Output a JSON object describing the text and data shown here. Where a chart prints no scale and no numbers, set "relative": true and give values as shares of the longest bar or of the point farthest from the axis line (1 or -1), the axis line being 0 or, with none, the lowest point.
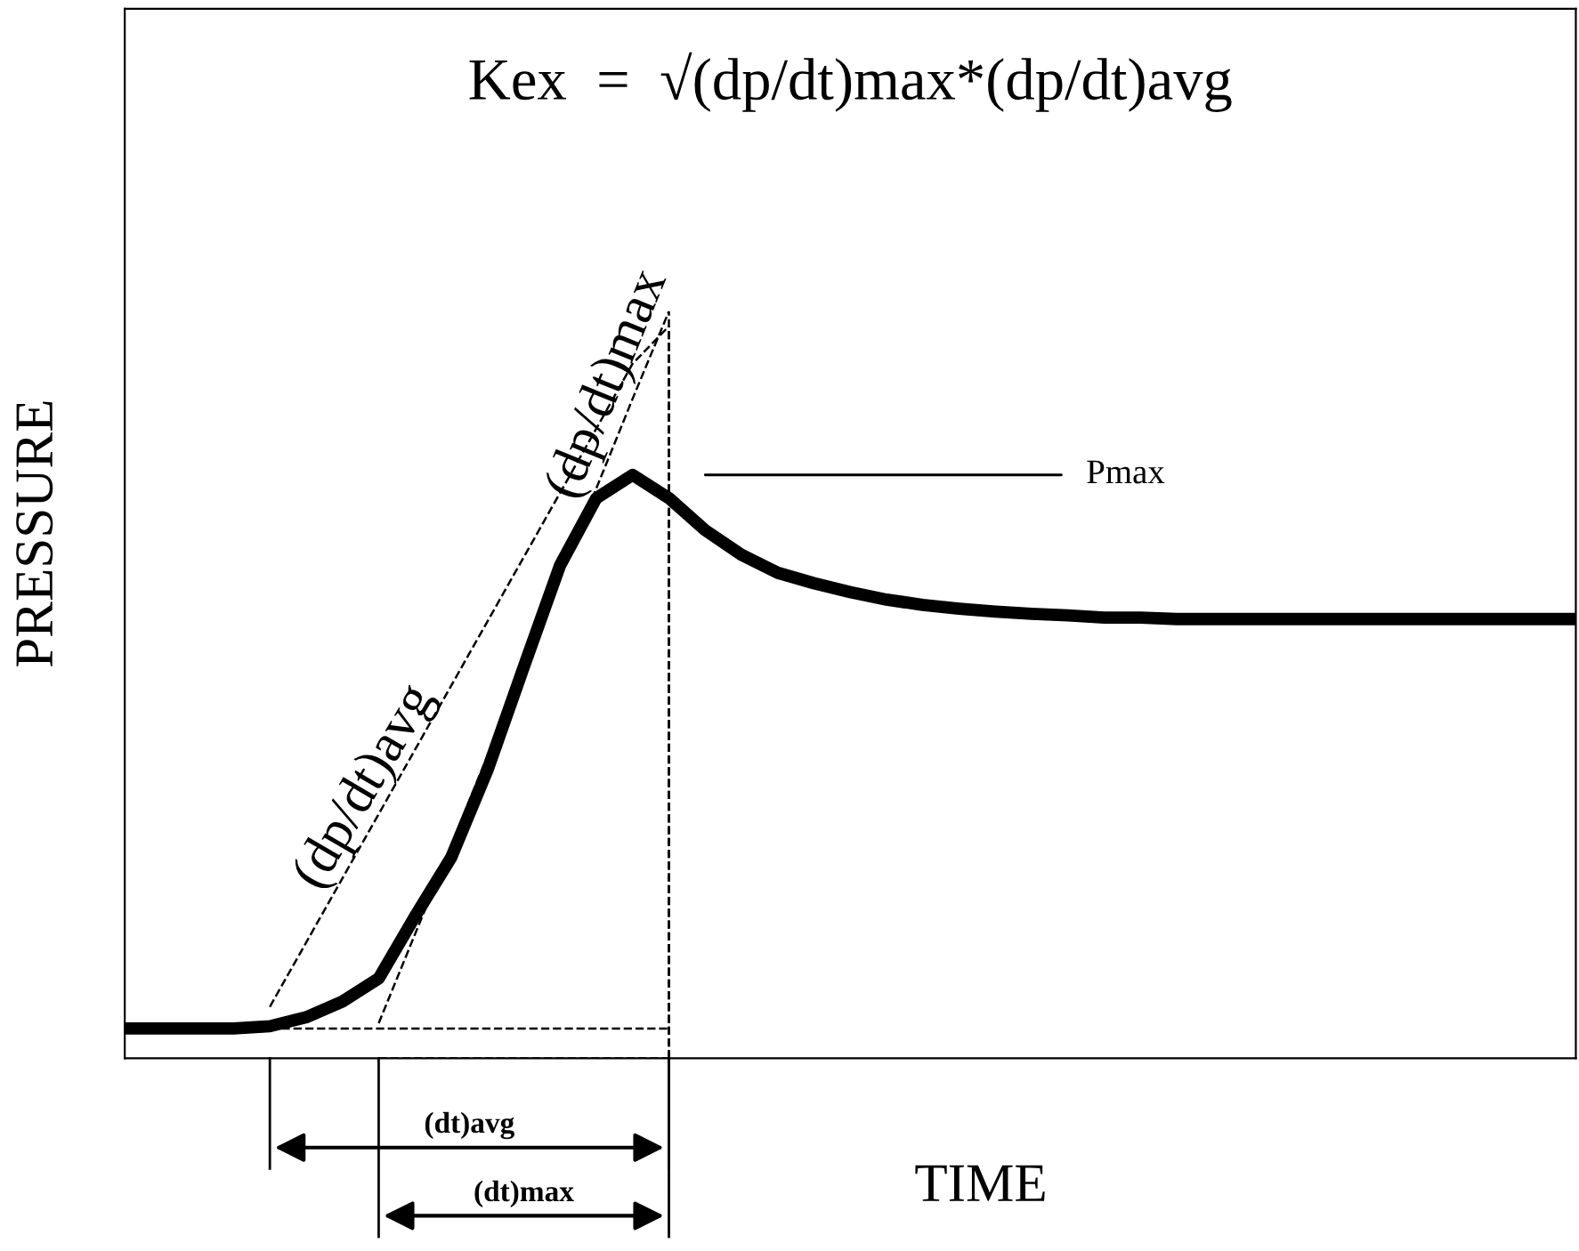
{
  "chart_data": {
    "type": "line",
    "relative": true,
    "xlabel": "TIME",
    "ylabel": "PRESSURE",
    "tick_labels": false,
    "legend": false,
    "categories": [
      null,
      null,
      null,
      null,
      null,
      null,
      null,
      null,
      null,
      null,
      null,
      null,
      null,
      null,
      null,
      null,
      null,
      null,
      null,
      null,
      null,
      null,
      null,
      null,
      null,
      null,
      null,
      null,
      null,
      null,
      null,
      null,
      null,
      null,
      null,
      null,
      null,
      null,
      null,
      null,
      null
    ],
    "series": [
      {
        "color": "#000000",
        "line_style": "solid",
        "values": [
          0.04,
          0.04,
          0.04,
          0.04,
          0.043,
          0.055,
          0.076,
          0.107,
          0.19,
          0.269,
          0.386,
          0.524,
          0.66,
          0.75,
          0.781,
          0.75,
          0.707,
          0.674,
          0.65,
          0.636,
          0.624,
          0.614,
          0.607,
          0.602,
          0.598,
          0.595,
          0.593,
          0.59,
          0.59,
          0.588,
          0.588,
          0.588,
          0.588,
          0.588,
          0.588,
          0.588,
          0.588,
          0.588,
          0.588,
          0.588,
          0.588
        ]
      },
      {
        "name": "(dp/dt)avg",
        "color": "#000000",
        "line_style": "dashed",
        "values": [
          null,
          null,
          null,
          null,
          0.069,
          0.155,
          0.241,
          0.327,
          0.413,
          0.499,
          0.585,
          0.671,
          0.757,
          0.843,
          0.93,
          0.98,
          null,
          null,
          null,
          null,
          null,
          null,
          null,
          null,
          null,
          null,
          null,
          null,
          null,
          null,
          null,
          null,
          null,
          null,
          null,
          null,
          null,
          null,
          null,
          null,
          null
        ]
      },
      {
        "name": "(dp/dt)max",
        "color": "#000000",
        "line_style": "dashed",
        "values": [
          null,
          null,
          null,
          null,
          null,
          null,
          null,
          0.047,
          0.166,
          0.285,
          0.405,
          0.525,
          0.644,
          0.763,
          0.883,
          1.0,
          null,
          null,
          null,
          null,
          null,
          null,
          null,
          null,
          null,
          null,
          null,
          null,
          null,
          null,
          null,
          null,
          null,
          null,
          null,
          null,
          null,
          null,
          null,
          null,
          null
        ]
      },
      {
        "color": "#000000",
        "line_style": "dashed",
        "values": [
          null,
          null,
          null,
          null,
          0.04,
          0.04,
          0.04,
          0.04,
          0.04,
          0.04,
          0.04,
          0.04,
          0.04,
          0.04,
          0.04,
          0.04,
          null,
          null,
          null,
          null,
          null,
          null,
          null,
          null,
          null,
          null,
          null,
          null,
          null,
          null,
          null,
          null,
          null,
          null,
          null,
          null,
          null,
          null,
          null,
          null,
          null
        ]
      },
      {
        "color": "#000000",
        "line_style": "dashed",
        "values": [
          null,
          null,
          null,
          null,
          null,
          null,
          null,
          0.0,
          0.0,
          0.0,
          0.0,
          0.0,
          0.0,
          0.0,
          0.0,
          0.0,
          null,
          null,
          null,
          null,
          null,
          null,
          null,
          null,
          null,
          null,
          null,
          null,
          null,
          null,
          null,
          null,
          null,
          null,
          null,
          null,
          null,
          null,
          null,
          null,
          null
        ]
      }
    ],
    "annotations": [
      "Kex  =  √(dp/dt)max*(dp/dt)avg",
      "Pmax",
      "(dt)avg",
      "(dt)max"
    ]
  }
}
